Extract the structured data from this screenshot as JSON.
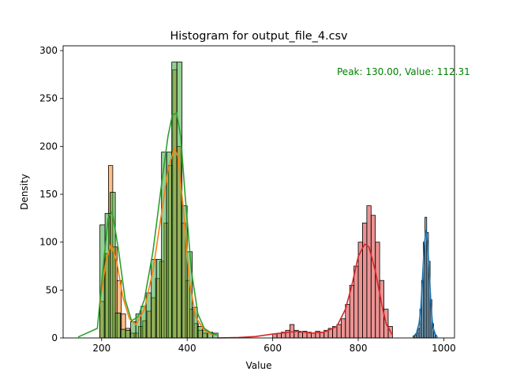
{
  "chart_data": {
    "type": "bar",
    "title": "Histogram for output_file_4.csv",
    "xlabel": "Value",
    "ylabel": "Density",
    "xlim": [
      110,
      1025
    ],
    "ylim": [
      0,
      305
    ],
    "xticks": [
      200,
      400,
      600,
      800,
      1000
    ],
    "yticks": [
      0,
      50,
      100,
      150,
      200,
      250,
      300
    ],
    "annotation": {
      "text": "Peak: 130.00, Value: 112.31",
      "color": "#008000"
    },
    "series": [
      {
        "color": "#ff7f0e",
        "bins": [
          {
            "x0": 196,
            "x1": 206,
            "y": 38
          },
          {
            "x0": 206,
            "x1": 216,
            "y": 88
          },
          {
            "x0": 216,
            "x1": 226,
            "y": 180
          },
          {
            "x0": 226,
            "x1": 236,
            "y": 95
          },
          {
            "x0": 236,
            "x1": 246,
            "y": 60
          },
          {
            "x0": 246,
            "x1": 256,
            "y": 25
          },
          {
            "x0": 256,
            "x1": 266,
            "y": 10
          },
          {
            "x0": 266,
            "x1": 276,
            "y": 5
          },
          {
            "x0": 276,
            "x1": 286,
            "y": 5
          },
          {
            "x0": 286,
            "x1": 296,
            "y": 12
          },
          {
            "x0": 296,
            "x1": 306,
            "y": 18
          },
          {
            "x0": 306,
            "x1": 316,
            "y": 28
          },
          {
            "x0": 316,
            "x1": 326,
            "y": 42
          },
          {
            "x0": 326,
            "x1": 336,
            "y": 62
          },
          {
            "x0": 336,
            "x1": 346,
            "y": 80
          },
          {
            "x0": 346,
            "x1": 356,
            "y": 120
          },
          {
            "x0": 356,
            "x1": 366,
            "y": 180
          },
          {
            "x0": 366,
            "x1": 376,
            "y": 280
          },
          {
            "x0": 376,
            "x1": 386,
            "y": 200
          },
          {
            "x0": 386,
            "x1": 396,
            "y": 120
          },
          {
            "x0": 396,
            "x1": 406,
            "y": 60
          },
          {
            "x0": 406,
            "x1": 416,
            "y": 30
          },
          {
            "x0": 416,
            "x1": 426,
            "y": 15
          },
          {
            "x0": 426,
            "x1": 436,
            "y": 8
          },
          {
            "x0": 436,
            "x1": 446,
            "y": 5
          }
        ],
        "kde_x": [
          196,
          210,
          222,
          235,
          250,
          265,
          280,
          300,
          320,
          340,
          355,
          370,
          378,
          390,
          405,
          420,
          440,
          460
        ],
        "kde_y": [
          35,
          80,
          98,
          80,
          42,
          20,
          14,
          30,
          70,
          130,
          175,
          198,
          190,
          140,
          60,
          22,
          8,
          3
        ]
      },
      {
        "color": "#2ca02c",
        "bins": [
          {
            "x0": 196,
            "x1": 208,
            "y": 118
          },
          {
            "x0": 208,
            "x1": 220,
            "y": 130
          },
          {
            "x0": 220,
            "x1": 232,
            "y": 152
          },
          {
            "x0": 232,
            "x1": 244,
            "y": 26
          },
          {
            "x0": 244,
            "x1": 256,
            "y": 9
          },
          {
            "x0": 256,
            "x1": 268,
            "y": 8
          },
          {
            "x0": 268,
            "x1": 280,
            "y": 17
          },
          {
            "x0": 280,
            "x1": 292,
            "y": 25
          },
          {
            "x0": 292,
            "x1": 304,
            "y": 33
          },
          {
            "x0": 304,
            "x1": 316,
            "y": 47
          },
          {
            "x0": 316,
            "x1": 328,
            "y": 82
          },
          {
            "x0": 328,
            "x1": 340,
            "y": 82
          },
          {
            "x0": 340,
            "x1": 352,
            "y": 194
          },
          {
            "x0": 352,
            "x1": 364,
            "y": 194
          },
          {
            "x0": 364,
            "x1": 376,
            "y": 288
          },
          {
            "x0": 376,
            "x1": 388,
            "y": 288
          },
          {
            "x0": 388,
            "x1": 400,
            "y": 138
          },
          {
            "x0": 400,
            "x1": 412,
            "y": 90
          },
          {
            "x0": 412,
            "x1": 424,
            "y": 32
          },
          {
            "x0": 424,
            "x1": 436,
            "y": 12
          },
          {
            "x0": 436,
            "x1": 448,
            "y": 8
          },
          {
            "x0": 448,
            "x1": 460,
            "y": 6
          },
          {
            "x0": 460,
            "x1": 472,
            "y": 5
          }
        ],
        "kde_x": [
          145,
          190,
          205,
          215,
          225,
          240,
          255,
          270,
          285,
          300,
          320,
          340,
          355,
          365,
          375,
          385,
          395,
          410,
          425,
          440,
          460,
          470
        ],
        "kde_y": [
          1,
          10,
          80,
          125,
          132,
          90,
          40,
          18,
          22,
          40,
          90,
          160,
          210,
          232,
          235,
          210,
          150,
          70,
          25,
          10,
          4,
          3
        ]
      },
      {
        "color": "#d62728",
        "bins": [
          {
            "x0": 600,
            "x1": 610,
            "y": 4
          },
          {
            "x0": 610,
            "x1": 620,
            "y": 5
          },
          {
            "x0": 620,
            "x1": 630,
            "y": 6
          },
          {
            "x0": 630,
            "x1": 640,
            "y": 8
          },
          {
            "x0": 640,
            "x1": 650,
            "y": 14
          },
          {
            "x0": 650,
            "x1": 660,
            "y": 8
          },
          {
            "x0": 660,
            "x1": 670,
            "y": 6
          },
          {
            "x0": 670,
            "x1": 680,
            "y": 7
          },
          {
            "x0": 680,
            "x1": 690,
            "y": 6
          },
          {
            "x0": 690,
            "x1": 700,
            "y": 5
          },
          {
            "x0": 700,
            "x1": 710,
            "y": 7
          },
          {
            "x0": 710,
            "x1": 720,
            "y": 6
          },
          {
            "x0": 720,
            "x1": 730,
            "y": 8
          },
          {
            "x0": 730,
            "x1": 740,
            "y": 10
          },
          {
            "x0": 740,
            "x1": 750,
            "y": 12
          },
          {
            "x0": 750,
            "x1": 760,
            "y": 14
          },
          {
            "x0": 760,
            "x1": 770,
            "y": 20
          },
          {
            "x0": 770,
            "x1": 780,
            "y": 35
          },
          {
            "x0": 780,
            "x1": 790,
            "y": 55
          },
          {
            "x0": 790,
            "x1": 800,
            "y": 75
          },
          {
            "x0": 800,
            "x1": 810,
            "y": 100
          },
          {
            "x0": 810,
            "x1": 820,
            "y": 120
          },
          {
            "x0": 820,
            "x1": 830,
            "y": 138
          },
          {
            "x0": 830,
            "x1": 840,
            "y": 128
          },
          {
            "x0": 840,
            "x1": 850,
            "y": 100
          },
          {
            "x0": 850,
            "x1": 860,
            "y": 60
          },
          {
            "x0": 860,
            "x1": 870,
            "y": 30
          },
          {
            "x0": 870,
            "x1": 880,
            "y": 12
          }
        ],
        "kde_x": [
          470,
          520,
          560,
          600,
          640,
          660,
          690,
          720,
          750,
          770,
          785,
          800,
          815,
          825,
          840,
          855,
          865,
          880
        ],
        "kde_y": [
          0,
          0.5,
          1.5,
          4,
          6,
          7,
          5,
          6,
          12,
          30,
          55,
          85,
          98,
          95,
          70,
          35,
          15,
          3
        ]
      },
      {
        "color": "#1f77b4",
        "bins": [
          {
            "x0": 928,
            "x1": 932,
            "y": 2
          },
          {
            "x0": 932,
            "x1": 936,
            "y": 3
          },
          {
            "x0": 936,
            "x1": 940,
            "y": 5
          },
          {
            "x0": 940,
            "x1": 944,
            "y": 10
          },
          {
            "x0": 944,
            "x1": 948,
            "y": 30
          },
          {
            "x0": 948,
            "x1": 952,
            "y": 60
          },
          {
            "x0": 952,
            "x1": 956,
            "y": 100
          },
          {
            "x0": 956,
            "x1": 960,
            "y": 126
          },
          {
            "x0": 960,
            "x1": 964,
            "y": 110
          },
          {
            "x0": 964,
            "x1": 968,
            "y": 80
          },
          {
            "x0": 968,
            "x1": 972,
            "y": 40
          },
          {
            "x0": 972,
            "x1": 976,
            "y": 15
          },
          {
            "x0": 976,
            "x1": 980,
            "y": 5
          },
          {
            "x0": 980,
            "x1": 984,
            "y": 2
          }
        ],
        "kde_x": [
          930,
          936,
          942,
          946,
          950,
          954,
          958,
          962,
          966,
          970,
          974,
          980,
          985
        ],
        "kde_y": [
          2,
          5,
          15,
          30,
          60,
          95,
          112,
          100,
          70,
          35,
          12,
          4,
          1
        ]
      }
    ]
  }
}
